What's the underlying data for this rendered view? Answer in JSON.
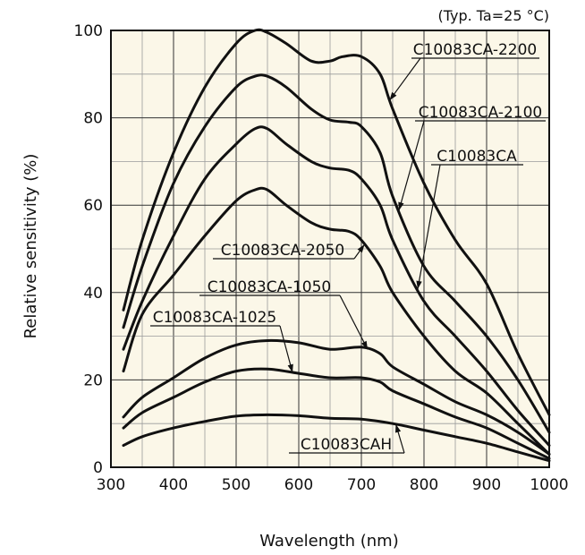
{
  "chart_data": {
    "type": "line",
    "note": "(Typ. Ta=25 °C)",
    "xlabel": "Wavelength (nm)",
    "ylabel": "Relative sensitivity (%)",
    "xlim": [
      300,
      1000
    ],
    "ylim": [
      0,
      100
    ],
    "xticks": [
      300,
      400,
      500,
      600,
      700,
      800,
      900,
      1000
    ],
    "yticks": [
      0,
      20,
      40,
      60,
      80,
      100
    ],
    "grid": true,
    "background_color": "#fbf7e8",
    "line_color": "#111111",
    "series": [
      {
        "name": "C10083CA-2200",
        "x": [
          320,
          350,
          400,
          450,
          500,
          530,
          550,
          580,
          620,
          650,
          670,
          700,
          730,
          750,
          800,
          850,
          900,
          950,
          1000
        ],
        "y": [
          36,
          52,
          72,
          87,
          97,
          100,
          99.5,
          97,
          93,
          93,
          94,
          94,
          90,
          82,
          65,
          52,
          42,
          26,
          12
        ]
      },
      {
        "name": "C10083CA-2100",
        "x": [
          320,
          350,
          400,
          450,
          500,
          530,
          550,
          580,
          620,
          650,
          680,
          700,
          730,
          750,
          800,
          850,
          900,
          950,
          1000
        ],
        "y": [
          32,
          46,
          65,
          78,
          87,
          89.5,
          89.5,
          87,
          82,
          79.5,
          79,
          78,
          72,
          62,
          46,
          38,
          30,
          20,
          8
        ]
      },
      {
        "name": "C10083CA",
        "x": [
          320,
          350,
          400,
          450,
          500,
          530,
          550,
          580,
          620,
          650,
          680,
          700,
          730,
          750,
          800,
          850,
          900,
          950,
          1000
        ],
        "y": [
          27,
          38,
          53,
          66,
          74,
          77.5,
          77.5,
          74,
          70,
          68.5,
          68,
          66,
          60,
          52,
          38,
          30,
          22,
          13,
          5
        ]
      },
      {
        "name": "C10083CA-2050",
        "x": [
          320,
          350,
          400,
          450,
          500,
          530,
          550,
          580,
          620,
          650,
          680,
          700,
          730,
          750,
          800,
          850,
          900,
          950,
          1000
        ],
        "y": [
          22,
          35,
          44,
          53,
          61,
          63.5,
          63.5,
          60,
          56,
          54.5,
          54,
          52,
          46,
          40,
          30,
          22,
          17,
          10,
          3
        ]
      },
      {
        "name": "C10083CA-1050",
        "x": [
          320,
          350,
          400,
          450,
          500,
          550,
          600,
          650,
          700,
          730,
          750,
          800,
          850,
          900,
          950,
          1000
        ],
        "y": [
          11.5,
          16,
          20.5,
          25,
          28,
          29,
          28.5,
          27,
          27.5,
          26,
          23,
          19,
          15,
          12,
          8,
          3
        ]
      },
      {
        "name": "C10083CA-1025",
        "x": [
          320,
          350,
          400,
          450,
          500,
          550,
          600,
          650,
          700,
          730,
          750,
          800,
          850,
          900,
          950,
          1000
        ],
        "y": [
          9,
          12.5,
          16,
          19.5,
          22,
          22.5,
          21.5,
          20.5,
          20.5,
          19.5,
          17.5,
          14.5,
          11.5,
          9,
          5.5,
          2
        ]
      },
      {
        "name": "C10083CAH",
        "x": [
          320,
          350,
          400,
          450,
          500,
          550,
          600,
          650,
          700,
          750,
          800,
          850,
          900,
          950,
          1000
        ],
        "y": [
          5,
          7,
          9,
          10.5,
          11.7,
          12,
          11.8,
          11.2,
          11,
          10,
          8.5,
          7,
          5.5,
          3.5,
          1.5
        ]
      }
    ],
    "annotations": [
      {
        "text": "C10083CA-2200",
        "series": "C10083CA-2200"
      },
      {
        "text": "C10083CA-2100",
        "series": "C10083CA-2100"
      },
      {
        "text": "C10083CA",
        "series": "C10083CA"
      },
      {
        "text": "C10083CA-2050",
        "series": "C10083CA-2050"
      },
      {
        "text": "C10083CA-1050",
        "series": "C10083CA-1050"
      },
      {
        "text": "C10083CA-1025",
        "series": "C10083CA-1025"
      },
      {
        "text": "C10083CAH",
        "series": "C10083CAH"
      }
    ]
  }
}
